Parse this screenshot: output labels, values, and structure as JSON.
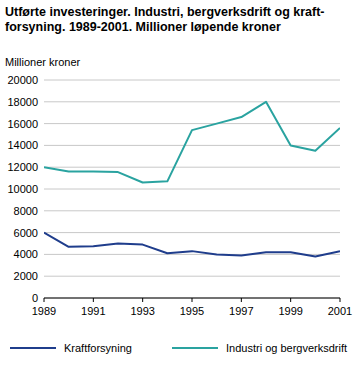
{
  "chart_data": {
    "type": "line",
    "title": "Utførte investeringer. Industri, bergverksdrift og kraft-forsyning. 1989-2001. Millioner løpende kroner",
    "y_label": "Millioner kroner",
    "x": [
      1989,
      1990,
      1991,
      1992,
      1993,
      1994,
      1995,
      1996,
      1997,
      1998,
      1999,
      2000,
      2001
    ],
    "xlim": [
      1989,
      2001
    ],
    "xticks": [
      1989,
      1991,
      1993,
      1995,
      1997,
      1999,
      2001
    ],
    "ylim": [
      0,
      20000
    ],
    "yticks": [
      0,
      2000,
      4000,
      6000,
      8000,
      10000,
      12000,
      14000,
      16000,
      18000,
      20000
    ],
    "grid": true,
    "legend": "bottom",
    "series": [
      {
        "name": "Kraftforsyning",
        "color": "#1f3d8c",
        "values": [
          6000,
          4700,
          4750,
          5000,
          4900,
          4100,
          4300,
          4000,
          3900,
          4200,
          4200,
          3800,
          4300
        ]
      },
      {
        "name": "Industri og bergverksdrift",
        "color": "#2aa3a0",
        "values": [
          12000,
          11600,
          11600,
          11550,
          10600,
          10700,
          15400,
          16000,
          16600,
          18000,
          14000,
          13500,
          15600
        ]
      }
    ]
  }
}
